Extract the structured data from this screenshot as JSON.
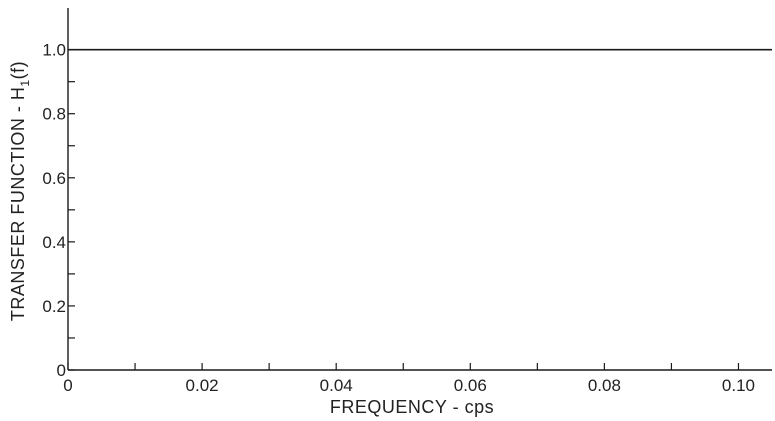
{
  "chart_data": {
    "type": "line",
    "xlabel": "FREQUENCY - cps",
    "ylabel": "TRANSFER FUNCTION - H",
    "ylabel_subscript": "1",
    "ylabel_suffix": "(f)",
    "xlim": [
      0,
      0.105
    ],
    "ylim": [
      0,
      1.13
    ],
    "x_ticks": [
      0,
      0.01,
      0.02,
      0.03,
      0.04,
      0.05,
      0.06,
      0.07,
      0.08,
      0.09,
      0.1
    ],
    "x_tick_labels": [
      {
        "value": 0,
        "label": "0"
      },
      {
        "value": 0.02,
        "label": "0.02"
      },
      {
        "value": 0.04,
        "label": "0.04"
      },
      {
        "value": 0.06,
        "label": "0.06"
      },
      {
        "value": 0.08,
        "label": "0.08"
      },
      {
        "value": 0.1,
        "label": "0.10"
      }
    ],
    "y_ticks": [
      0,
      0.1,
      0.2,
      0.3,
      0.4,
      0.5,
      0.6,
      0.7,
      0.8,
      0.9,
      1.0
    ],
    "y_tick_labels": [
      {
        "value": 0,
        "label": "0"
      },
      {
        "value": 0.2,
        "label": "0.2"
      },
      {
        "value": 0.4,
        "label": "0.4"
      },
      {
        "value": 0.6,
        "label": "0.6"
      },
      {
        "value": 0.8,
        "label": "0.8"
      },
      {
        "value": 1.0,
        "label": "1.0"
      }
    ],
    "grid": false,
    "series": [
      {
        "x": [
          0,
          0.02,
          0.04,
          0.06,
          0.08,
          0.1,
          0.105
        ],
        "y": [
          1.0,
          1.0,
          1.0,
          1.0,
          1.0,
          1.0,
          1.0
        ]
      }
    ]
  }
}
